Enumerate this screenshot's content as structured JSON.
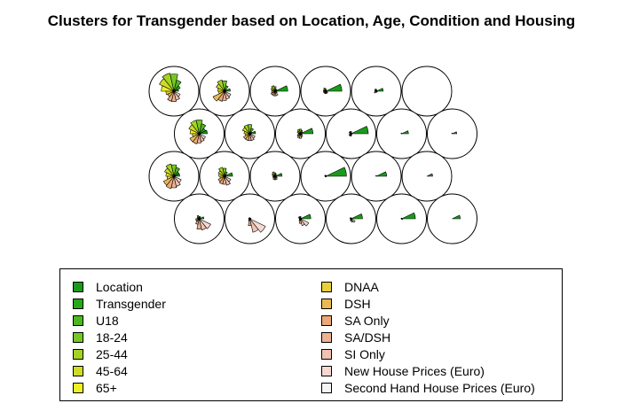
{
  "chart_data": {
    "type": "som-segment-map",
    "title": "Clusters for Transgender based on Location, Age, Condition and Housing",
    "grid": {
      "rows": 4,
      "cols": 6,
      "topology": "hexagonal"
    },
    "variables": [
      {
        "name": "Location",
        "color": "#1a9a1a"
      },
      {
        "name": "Transgender",
        "color": "#29a81c"
      },
      {
        "name": "U18",
        "color": "#4cb81f"
      },
      {
        "name": "18-24",
        "color": "#75c722"
      },
      {
        "name": "25-44",
        "color": "#a3d424"
      },
      {
        "name": "45-64",
        "color": "#cfdc25"
      },
      {
        "name": "65+",
        "color": "#eef024"
      },
      {
        "name": "DNAA",
        "color": "#e8cf3b"
      },
      {
        "name": "DSH",
        "color": "#e9b955"
      },
      {
        "name": "SA Only",
        "color": "#eaa878"
      },
      {
        "name": "SA/DSH",
        "color": "#ebb293"
      },
      {
        "name": "SI Only",
        "color": "#efc2b1"
      },
      {
        "name": "New House Prices (Euro)",
        "color": "#f6d8d1"
      },
      {
        "name": "Second Hand House Prices (Euro)",
        "color": "#f5f5f5"
      }
    ],
    "units": [
      [
        [
          0.2,
          0.3,
          0.5,
          0.75,
          0.8,
          0.7,
          0.55,
          0.35,
          0.3,
          0.45,
          0.45,
          0.4,
          0.3,
          0.05
        ],
        [
          0.25,
          0.1,
          0.25,
          0.45,
          0.5,
          0.4,
          0.3,
          0.25,
          0.55,
          0.45,
          0.4,
          0.35,
          0.3,
          0.05
        ],
        [
          0.55,
          0.1,
          0.1,
          0.2,
          0.25,
          0.2,
          0.15,
          0.15,
          0.2,
          0.2,
          0.2,
          0.2,
          0.1,
          0.05
        ],
        [
          0.7,
          0.05,
          0.05,
          0.1,
          0.15,
          0.1,
          0.1,
          0.1,
          0.1,
          0.1,
          0.1,
          0.1,
          0.1,
          0.05
        ],
        [
          0.3,
          0.02,
          0.05,
          0.08,
          0.1,
          0.08,
          0.05,
          0.05,
          0.1,
          0.05,
          0.05,
          0.05,
          0.05,
          0.02
        ],
        [
          0.02,
          0.01,
          0.01,
          0.01,
          0.01,
          0.01,
          0.01,
          0.01,
          0.01,
          0.01,
          0.01,
          0.01,
          0.01,
          0.01
        ]
      ],
      [
        [
          0.35,
          0.3,
          0.45,
          0.6,
          0.6,
          0.5,
          0.4,
          0.3,
          0.45,
          0.45,
          0.4,
          0.35,
          0.3,
          0.05
        ],
        [
          0.25,
          0.1,
          0.25,
          0.4,
          0.4,
          0.35,
          0.25,
          0.2,
          0.3,
          0.3,
          0.3,
          0.3,
          0.25,
          0.05
        ],
        [
          0.55,
          0.1,
          0.15,
          0.2,
          0.2,
          0.15,
          0.1,
          0.1,
          0.15,
          0.2,
          0.2,
          0.15,
          0.1,
          0.05
        ],
        [
          0.75,
          0.03,
          0.05,
          0.1,
          0.1,
          0.1,
          0.05,
          0.05,
          0.1,
          0.1,
          0.1,
          0.05,
          0.05,
          0.03
        ],
        [
          0.3,
          0.02,
          0.02,
          0.03,
          0.03,
          0.03,
          0.02,
          0.02,
          0.02,
          0.02,
          0.02,
          0.02,
          0.02,
          0.02
        ],
        [
          0.2,
          0.02,
          0.02,
          0.03,
          0.03,
          0.02,
          0.02,
          0.02,
          0.02,
          0.02,
          0.02,
          0.02,
          0.02,
          0.02
        ]
      ],
      [
        [
          0.25,
          0.25,
          0.4,
          0.5,
          0.55,
          0.45,
          0.35,
          0.3,
          0.5,
          0.55,
          0.5,
          0.45,
          0.35,
          0.05
        ],
        [
          0.35,
          0.1,
          0.2,
          0.35,
          0.4,
          0.3,
          0.25,
          0.2,
          0.3,
          0.35,
          0.35,
          0.4,
          0.3,
          0.05
        ],
        [
          0.3,
          0.05,
          0.1,
          0.15,
          0.2,
          0.15,
          0.1,
          0.1,
          0.1,
          0.15,
          0.15,
          0.15,
          0.1,
          0.05
        ],
        [
          0.9,
          0.03,
          0.03,
          0.05,
          0.05,
          0.05,
          0.03,
          0.03,
          0.03,
          0.03,
          0.03,
          0.03,
          0.03,
          0.02
        ],
        [
          0.45,
          0.02,
          0.02,
          0.03,
          0.03,
          0.03,
          0.02,
          0.02,
          0.02,
          0.02,
          0.02,
          0.02,
          0.02,
          0.02
        ],
        [
          0.25,
          0.02,
          0.02,
          0.02,
          0.02,
          0.02,
          0.02,
          0.02,
          0.02,
          0.02,
          0.02,
          0.02,
          0.02,
          0.02
        ]
      ],
      [
        [
          0.2,
          0.05,
          0.1,
          0.1,
          0.15,
          0.1,
          0.1,
          0.15,
          0.15,
          0.25,
          0.45,
          0.5,
          0.55,
          0.05
        ],
        [
          0.05,
          0.03,
          0.03,
          0.05,
          0.05,
          0.05,
          0.05,
          0.05,
          0.05,
          0.1,
          0.3,
          0.6,
          0.75,
          0.05
        ],
        [
          0.45,
          0.05,
          0.05,
          0.1,
          0.1,
          0.1,
          0.05,
          0.05,
          0.05,
          0.1,
          0.2,
          0.3,
          0.4,
          0.05
        ],
        [
          0.5,
          0.03,
          0.03,
          0.05,
          0.05,
          0.05,
          0.03,
          0.03,
          0.03,
          0.05,
          0.1,
          0.15,
          0.2,
          0.03
        ],
        [
          0.6,
          0.02,
          0.02,
          0.03,
          0.03,
          0.03,
          0.02,
          0.02,
          0.02,
          0.02,
          0.02,
          0.03,
          0.05,
          0.02
        ],
        [
          0.35,
          0.02,
          0.02,
          0.02,
          0.02,
          0.02,
          0.02,
          0.02,
          0.02,
          0.02,
          0.02,
          0.02,
          0.02,
          0.02
        ]
      ]
    ]
  }
}
